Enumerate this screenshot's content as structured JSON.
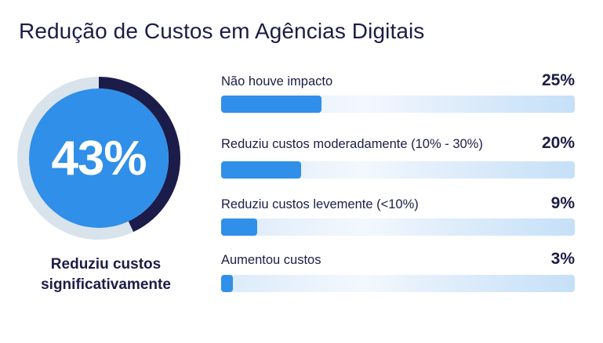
{
  "title": "Redução de Custos em Agências Digitais",
  "colors": {
    "text": "#1c1d45",
    "accent_blue": "#2f8fe9",
    "ring_dark": "#1b1c4a",
    "ring_track": "#d9e3ec",
    "bar_track_light": "#f3f8fe",
    "bar_track_dark": "#c5e0f8"
  },
  "highlight": {
    "value": "43%",
    "percent": 43,
    "caption_line1": "Reduziu custos",
    "caption_line2": "significativamente"
  },
  "rows": [
    {
      "label": "Não houve impacto",
      "value": "25%",
      "percent": 25
    },
    {
      "label": "Reduziu custos moderadamente (10% - 30%)",
      "value": "20%",
      "percent": 20
    },
    {
      "label": "Reduziu custos levemente (<10%)",
      "value": "9%",
      "percent": 9
    },
    {
      "label": "Aumentou custos",
      "value": "3%",
      "percent": 3
    }
  ],
  "chart_data": [
    {
      "type": "pie",
      "title": "Redução de Custos em Agências Digitais",
      "categories": [
        "Reduziu custos significativamente"
      ],
      "values": [
        43
      ],
      "annotations": [
        "43%"
      ]
    },
    {
      "type": "bar",
      "orientation": "horizontal",
      "title": "Redução de Custos em Agências Digitais",
      "categories": [
        "Não houve impacto",
        "Reduziu custos moderadamente (10% - 30%)",
        "Reduziu custos levemente (<10%)",
        "Aumentou custos"
      ],
      "values": [
        25,
        20,
        9,
        3
      ],
      "data_labels": [
        "25%",
        "20%",
        "9%",
        "3%"
      ],
      "xlabel": "",
      "ylabel": "",
      "grid": false,
      "legend": "none"
    }
  ]
}
